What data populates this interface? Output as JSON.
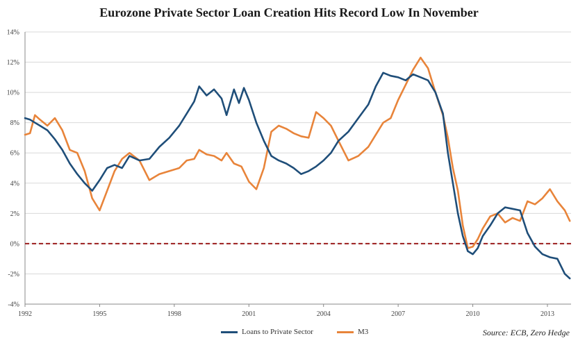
{
  "chart_data": {
    "type": "line",
    "title": "Eurozone Private Sector Loan Creation Hits Record Low In November",
    "xlabel": "",
    "ylabel": "",
    "xlim": [
      1992.0,
      2013.95
    ],
    "ylim": [
      -4,
      14
    ],
    "x_ticks": [
      1992,
      1995,
      1998,
      2001,
      2004,
      2007,
      2010,
      2013
    ],
    "x_tick_labels": [
      "1992",
      "1995",
      "1998",
      "2001",
      "2004",
      "2007",
      "2010",
      "2013"
    ],
    "y_ticks": [
      -4,
      -2,
      0,
      2,
      4,
      6,
      8,
      10,
      12,
      14
    ],
    "y_tick_labels": [
      "-4%",
      "-2%",
      "0%",
      "2%",
      "4%",
      "6%",
      "8%",
      "10%",
      "12%",
      "14%"
    ],
    "grid": "horizontal",
    "legend_position": "bottom-center",
    "zero_reference_line": {
      "value": 0,
      "color": "#9b1c1c",
      "style": "dashed"
    },
    "series": [
      {
        "name": "Loans to Private Sector",
        "color": "#1f4e79",
        "x": [
          1992.0,
          1992.2,
          1992.4,
          1992.6,
          1992.9,
          1993.2,
          1993.5,
          1993.8,
          1994.1,
          1994.4,
          1994.7,
          1995.0,
          1995.3,
          1995.6,
          1995.9,
          1996.2,
          1996.6,
          1997.0,
          1997.4,
          1997.8,
          1998.2,
          1998.5,
          1998.8,
          1999.0,
          1999.3,
          1999.6,
          1999.9,
          2000.1,
          2000.4,
          2000.6,
          2000.8,
          2001.0,
          2001.3,
          2001.6,
          2001.9,
          2002.2,
          2002.5,
          2002.8,
          2003.1,
          2003.4,
          2003.7,
          2004.0,
          2004.3,
          2004.6,
          2005.0,
          2005.4,
          2005.8,
          2006.1,
          2006.4,
          2006.7,
          2007.0,
          2007.3,
          2007.6,
          2007.9,
          2008.2,
          2008.5,
          2008.8,
          2009.0,
          2009.2,
          2009.4,
          2009.6,
          2009.8,
          2010.0,
          2010.2,
          2010.4,
          2010.7,
          2011.0,
          2011.3,
          2011.6,
          2011.9,
          2012.2,
          2012.5,
          2012.8,
          2013.1,
          2013.4,
          2013.7,
          2013.9
        ],
        "values": [
          8.3,
          8.2,
          8.0,
          7.8,
          7.5,
          6.9,
          6.2,
          5.3,
          4.6,
          4.0,
          3.5,
          4.2,
          5.0,
          5.2,
          5.0,
          5.8,
          5.5,
          5.6,
          6.4,
          7.0,
          7.8,
          8.6,
          9.4,
          10.4,
          9.8,
          10.2,
          9.6,
          8.5,
          10.2,
          9.3,
          10.3,
          9.5,
          8.0,
          6.8,
          5.8,
          5.5,
          5.3,
          5.0,
          4.6,
          4.8,
          5.1,
          5.5,
          6.0,
          6.8,
          7.4,
          8.3,
          9.2,
          10.4,
          11.3,
          11.1,
          11.0,
          10.8,
          11.2,
          11.0,
          10.8,
          10.0,
          8.6,
          6.0,
          4.0,
          2.0,
          0.5,
          -0.5,
          -0.7,
          -0.3,
          0.5,
          1.2,
          2.0,
          2.4,
          2.3,
          2.2,
          0.7,
          -0.2,
          -0.7,
          -0.9,
          -1.0,
          -2.0,
          -2.3
        ]
      },
      {
        "name": "M3",
        "color": "#e8843a",
        "x": [
          1992.0,
          1992.2,
          1992.4,
          1992.6,
          1992.9,
          1993.2,
          1993.5,
          1993.8,
          1994.1,
          1994.4,
          1994.7,
          1995.0,
          1995.3,
          1995.6,
          1995.9,
          1996.2,
          1996.6,
          1997.0,
          1997.4,
          1997.8,
          1998.2,
          1998.5,
          1998.8,
          1999.0,
          1999.3,
          1999.6,
          1999.9,
          2000.1,
          2000.4,
          2000.7,
          2001.0,
          2001.3,
          2001.6,
          2001.9,
          2002.2,
          2002.5,
          2002.8,
          2003.1,
          2003.4,
          2003.7,
          2004.0,
          2004.3,
          2004.6,
          2005.0,
          2005.4,
          2005.8,
          2006.1,
          2006.4,
          2006.7,
          2007.0,
          2007.3,
          2007.6,
          2007.9,
          2008.2,
          2008.5,
          2008.8,
          2009.0,
          2009.2,
          2009.4,
          2009.6,
          2009.8,
          2010.0,
          2010.2,
          2010.4,
          2010.7,
          2011.0,
          2011.3,
          2011.6,
          2011.9,
          2012.2,
          2012.5,
          2012.8,
          2013.1,
          2013.4,
          2013.7,
          2013.9
        ],
        "values": [
          7.2,
          7.3,
          8.5,
          8.2,
          7.8,
          8.3,
          7.5,
          6.2,
          6.0,
          4.8,
          3.0,
          2.2,
          3.5,
          4.8,
          5.6,
          6.0,
          5.5,
          4.2,
          4.6,
          4.8,
          5.0,
          5.5,
          5.6,
          6.2,
          5.9,
          5.8,
          5.5,
          6.0,
          5.3,
          5.1,
          4.1,
          3.6,
          5.0,
          7.4,
          7.8,
          7.6,
          7.3,
          7.1,
          7.0,
          8.7,
          8.3,
          7.8,
          6.8,
          5.5,
          5.8,
          6.4,
          7.2,
          8.0,
          8.3,
          9.5,
          10.5,
          11.5,
          12.3,
          11.6,
          10.0,
          8.5,
          7.0,
          5.0,
          3.5,
          1.2,
          -0.3,
          -0.2,
          0.3,
          1.0,
          1.8,
          2.0,
          1.4,
          1.7,
          1.5,
          2.8,
          2.6,
          3.0,
          3.6,
          2.8,
          2.2,
          1.5
        ]
      }
    ],
    "source_note": "Source: ECB,  Zero Hedge"
  }
}
